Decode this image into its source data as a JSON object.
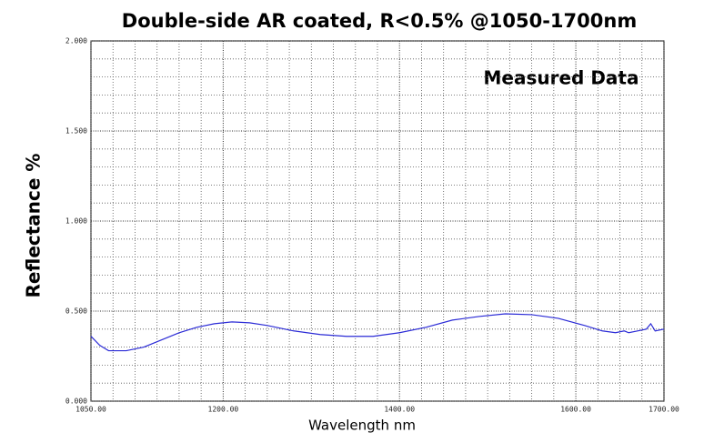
{
  "chart_data": {
    "type": "line",
    "title": "Double-side AR coated, R<0.5% @1050-1700nm",
    "annotation": "Measured Data",
    "xlabel": "Wavelength nm",
    "ylabel": "Reflectance %",
    "xlim": [
      1050,
      1700
    ],
    "ylim": [
      0,
      2
    ],
    "xticks": [
      {
        "value": 1050,
        "label": "1050.00"
      },
      {
        "value": 1200,
        "label": "1200.00"
      },
      {
        "value": 1400,
        "label": "1400.00"
      },
      {
        "value": 1600,
        "label": "1600.00"
      },
      {
        "value": 1700,
        "label": "1700.00"
      }
    ],
    "yticks": [
      {
        "value": 0,
        "label": "0.000"
      },
      {
        "value": 0.5,
        "label": "0.500"
      },
      {
        "value": 1,
        "label": "1.000"
      },
      {
        "value": 1.5,
        "label": "1.500"
      },
      {
        "value": 2,
        "label": "2.000"
      }
    ],
    "xminor": [
      1075,
      1100,
      1125,
      1150,
      1175,
      1225,
      1250,
      1275,
      1300,
      1325,
      1350,
      1375,
      1425,
      1450,
      1475,
      1500,
      1525,
      1550,
      1575,
      1625,
      1650,
      1675
    ],
    "yminor": [
      0.1,
      0.2,
      0.3,
      0.4,
      0.6,
      0.7,
      0.8,
      0.9,
      1.1,
      1.2,
      1.3,
      1.4,
      1.6,
      1.7,
      1.8,
      1.9
    ],
    "grid": true,
    "series": [
      {
        "name": "Measured Data",
        "color": "#2b2bd6",
        "x": [
          1050,
          1060,
          1070,
          1090,
          1110,
          1130,
          1150,
          1170,
          1190,
          1210,
          1230,
          1250,
          1280,
          1310,
          1340,
          1370,
          1400,
          1430,
          1460,
          1490,
          1520,
          1550,
          1580,
          1610,
          1630,
          1645,
          1655,
          1660,
          1670,
          1680,
          1685,
          1690,
          1700
        ],
        "values": [
          0.36,
          0.31,
          0.28,
          0.28,
          0.3,
          0.34,
          0.38,
          0.41,
          0.43,
          0.44,
          0.435,
          0.42,
          0.39,
          0.37,
          0.36,
          0.36,
          0.38,
          0.41,
          0.45,
          0.47,
          0.485,
          0.48,
          0.46,
          0.42,
          0.39,
          0.38,
          0.39,
          0.38,
          0.39,
          0.4,
          0.43,
          0.39,
          0.4
        ]
      }
    ]
  }
}
